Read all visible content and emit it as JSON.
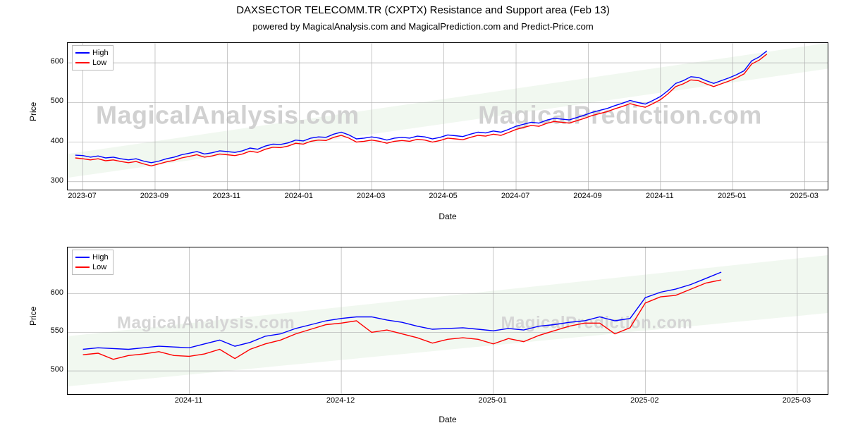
{
  "title": "DAXSECTOR TELECOMM.TR (CXPTX) Resistance and Support area (Feb 13)",
  "subtitle": "powered by MagicalAnalysis.com and MagicalPrediction.com and Predict-Price.com",
  "xlabel": "Date",
  "ylabel": "Price",
  "legend": {
    "high": "High",
    "low": "Low",
    "high_color": "#0000ff",
    "low_color": "#ff0000"
  },
  "watermark": {
    "line1_a": "MagicalAnalysis.com",
    "line1_b": "MagicalPrediction.com",
    "line2_a": "MagicalAnalysis.com",
    "line2_b": "MagicalPrediction.com"
  },
  "chart1": {
    "type": "line",
    "background_color": "#ffffff",
    "grid_color": "#b0b0b0",
    "band_color": "#d8ecd4",
    "xlim": [
      0,
      100
    ],
    "ylim": [
      280,
      650
    ],
    "ytick_step": 100,
    "yticks": [
      300,
      400,
      500,
      600
    ],
    "xtick_positions": [
      2,
      11.5,
      21,
      30.5,
      40,
      49.5,
      59,
      68.5,
      78,
      87.5,
      97
    ],
    "xtick_labels": [
      "2023-07",
      "2023-09",
      "2023-11",
      "2024-01",
      "2024-03",
      "2024-05",
      "2024-07",
      "2024-09",
      "2024-11",
      "2025-01",
      "2025-03"
    ],
    "band_poly": [
      [
        0,
        310
      ],
      [
        100,
        585
      ],
      [
        100,
        650
      ],
      [
        0,
        370
      ]
    ],
    "high_color": "#0000ff",
    "low_color": "#ff0000",
    "line_width": 1.4,
    "high": [
      [
        1,
        367
      ],
      [
        2,
        366
      ],
      [
        3,
        362
      ],
      [
        4,
        365
      ],
      [
        5,
        360
      ],
      [
        6,
        362
      ],
      [
        7,
        358
      ],
      [
        8,
        355
      ],
      [
        9,
        358
      ],
      [
        10,
        352
      ],
      [
        11,
        348
      ],
      [
        12,
        352
      ],
      [
        13,
        358
      ],
      [
        14,
        362
      ],
      [
        15,
        368
      ],
      [
        16,
        372
      ],
      [
        17,
        376
      ],
      [
        18,
        370
      ],
      [
        19,
        373
      ],
      [
        20,
        378
      ],
      [
        21,
        376
      ],
      [
        22,
        374
      ],
      [
        23,
        378
      ],
      [
        24,
        385
      ],
      [
        25,
        382
      ],
      [
        26,
        390
      ],
      [
        27,
        395
      ],
      [
        28,
        394
      ],
      [
        29,
        398
      ],
      [
        30,
        405
      ],
      [
        31,
        403
      ],
      [
        32,
        410
      ],
      [
        33,
        413
      ],
      [
        34,
        412
      ],
      [
        35,
        420
      ],
      [
        36,
        425
      ],
      [
        37,
        418
      ],
      [
        38,
        408
      ],
      [
        39,
        410
      ],
      [
        40,
        413
      ],
      [
        41,
        410
      ],
      [
        42,
        405
      ],
      [
        43,
        410
      ],
      [
        44,
        412
      ],
      [
        45,
        410
      ],
      [
        46,
        415
      ],
      [
        47,
        413
      ],
      [
        48,
        408
      ],
      [
        49,
        412
      ],
      [
        50,
        418
      ],
      [
        51,
        416
      ],
      [
        52,
        414
      ],
      [
        53,
        420
      ],
      [
        54,
        425
      ],
      [
        55,
        423
      ],
      [
        56,
        428
      ],
      [
        57,
        425
      ],
      [
        58,
        432
      ],
      [
        59,
        440
      ],
      [
        60,
        445
      ],
      [
        61,
        450
      ],
      [
        62,
        448
      ],
      [
        63,
        455
      ],
      [
        64,
        460
      ],
      [
        65,
        458
      ],
      [
        66,
        456
      ],
      [
        67,
        462
      ],
      [
        68,
        468
      ],
      [
        69,
        475
      ],
      [
        70,
        480
      ],
      [
        71,
        485
      ],
      [
        72,
        492
      ],
      [
        73,
        498
      ],
      [
        74,
        505
      ],
      [
        75,
        500
      ],
      [
        76,
        496
      ],
      [
        77,
        505
      ],
      [
        78,
        515
      ],
      [
        79,
        530
      ],
      [
        80,
        548
      ],
      [
        81,
        555
      ],
      [
        82,
        565
      ],
      [
        83,
        563
      ],
      [
        84,
        555
      ],
      [
        85,
        548
      ],
      [
        86,
        555
      ],
      [
        87,
        562
      ],
      [
        88,
        570
      ],
      [
        89,
        580
      ],
      [
        90,
        605
      ],
      [
        91,
        615
      ],
      [
        92,
        630
      ]
    ],
    "low": [
      [
        1,
        360
      ],
      [
        2,
        358
      ],
      [
        3,
        355
      ],
      [
        4,
        358
      ],
      [
        5,
        353
      ],
      [
        6,
        355
      ],
      [
        7,
        351
      ],
      [
        8,
        348
      ],
      [
        9,
        351
      ],
      [
        10,
        345
      ],
      [
        11,
        340
      ],
      [
        12,
        345
      ],
      [
        13,
        350
      ],
      [
        14,
        354
      ],
      [
        15,
        360
      ],
      [
        16,
        364
      ],
      [
        17,
        368
      ],
      [
        18,
        362
      ],
      [
        19,
        365
      ],
      [
        20,
        370
      ],
      [
        21,
        368
      ],
      [
        22,
        366
      ],
      [
        23,
        370
      ],
      [
        24,
        377
      ],
      [
        25,
        374
      ],
      [
        26,
        382
      ],
      [
        27,
        387
      ],
      [
        28,
        386
      ],
      [
        29,
        390
      ],
      [
        30,
        397
      ],
      [
        31,
        395
      ],
      [
        32,
        402
      ],
      [
        33,
        405
      ],
      [
        34,
        404
      ],
      [
        35,
        412
      ],
      [
        36,
        417
      ],
      [
        37,
        410
      ],
      [
        38,
        400
      ],
      [
        39,
        402
      ],
      [
        40,
        405
      ],
      [
        41,
        402
      ],
      [
        42,
        397
      ],
      [
        43,
        402
      ],
      [
        44,
        404
      ],
      [
        45,
        402
      ],
      [
        46,
        407
      ],
      [
        47,
        405
      ],
      [
        48,
        400
      ],
      [
        49,
        404
      ],
      [
        50,
        410
      ],
      [
        51,
        408
      ],
      [
        52,
        406
      ],
      [
        53,
        412
      ],
      [
        54,
        417
      ],
      [
        55,
        415
      ],
      [
        56,
        420
      ],
      [
        57,
        417
      ],
      [
        58,
        424
      ],
      [
        59,
        432
      ],
      [
        60,
        437
      ],
      [
        61,
        442
      ],
      [
        62,
        440
      ],
      [
        63,
        447
      ],
      [
        64,
        452
      ],
      [
        65,
        450
      ],
      [
        66,
        448
      ],
      [
        67,
        454
      ],
      [
        68,
        460
      ],
      [
        69,
        467
      ],
      [
        70,
        472
      ],
      [
        71,
        477
      ],
      [
        72,
        484
      ],
      [
        73,
        490
      ],
      [
        74,
        497
      ],
      [
        75,
        492
      ],
      [
        76,
        488
      ],
      [
        77,
        497
      ],
      [
        78,
        507
      ],
      [
        79,
        522
      ],
      [
        80,
        540
      ],
      [
        81,
        547
      ],
      [
        82,
        557
      ],
      [
        83,
        555
      ],
      [
        84,
        547
      ],
      [
        85,
        540
      ],
      [
        86,
        547
      ],
      [
        87,
        554
      ],
      [
        88,
        562
      ],
      [
        89,
        572
      ],
      [
        90,
        597
      ],
      [
        91,
        607
      ],
      [
        92,
        622
      ]
    ]
  },
  "chart2": {
    "type": "line",
    "background_color": "#ffffff",
    "grid_color": "#b0b0b0",
    "band_color": "#d8ecd4",
    "xlim": [
      0,
      100
    ],
    "ylim": [
      470,
      660
    ],
    "ytick_step": 50,
    "yticks": [
      500,
      550,
      600
    ],
    "xtick_positions": [
      16,
      36,
      56,
      76,
      96
    ],
    "xtick_labels": [
      "2024-11",
      "2024-12",
      "2025-01",
      "2025-02",
      "2025-03"
    ],
    "band_poly": [
      [
        0,
        545
      ],
      [
        100,
        650
      ],
      [
        100,
        575
      ],
      [
        0,
        480
      ]
    ],
    "high_color": "#0000ff",
    "low_color": "#ff0000",
    "line_width": 1.8,
    "high": [
      [
        2,
        528
      ],
      [
        4,
        530
      ],
      [
        6,
        529
      ],
      [
        8,
        528
      ],
      [
        10,
        530
      ],
      [
        12,
        532
      ],
      [
        14,
        531
      ],
      [
        16,
        530
      ],
      [
        18,
        535
      ],
      [
        20,
        540
      ],
      [
        22,
        532
      ],
      [
        24,
        537
      ],
      [
        26,
        545
      ],
      [
        28,
        548
      ],
      [
        30,
        555
      ],
      [
        32,
        560
      ],
      [
        34,
        565
      ],
      [
        36,
        568
      ],
      [
        38,
        570
      ],
      [
        40,
        570
      ],
      [
        42,
        566
      ],
      [
        44,
        563
      ],
      [
        46,
        558
      ],
      [
        48,
        554
      ],
      [
        50,
        555
      ],
      [
        52,
        556
      ],
      [
        54,
        554
      ],
      [
        56,
        552
      ],
      [
        58,
        555
      ],
      [
        60,
        553
      ],
      [
        62,
        558
      ],
      [
        64,
        560
      ],
      [
        66,
        563
      ],
      [
        68,
        565
      ],
      [
        70,
        570
      ],
      [
        72,
        565
      ],
      [
        74,
        568
      ],
      [
        76,
        595
      ],
      [
        78,
        602
      ],
      [
        80,
        606
      ],
      [
        82,
        612
      ],
      [
        84,
        620
      ],
      [
        86,
        628
      ]
    ],
    "low": [
      [
        2,
        521
      ],
      [
        4,
        523
      ],
      [
        6,
        515
      ],
      [
        8,
        520
      ],
      [
        10,
        522
      ],
      [
        12,
        525
      ],
      [
        14,
        520
      ],
      [
        16,
        519
      ],
      [
        18,
        522
      ],
      [
        20,
        528
      ],
      [
        22,
        516
      ],
      [
        24,
        528
      ],
      [
        26,
        535
      ],
      [
        28,
        540
      ],
      [
        30,
        548
      ],
      [
        32,
        554
      ],
      [
        34,
        560
      ],
      [
        36,
        562
      ],
      [
        38,
        565
      ],
      [
        40,
        550
      ],
      [
        42,
        553
      ],
      [
        44,
        548
      ],
      [
        46,
        543
      ],
      [
        48,
        536
      ],
      [
        50,
        541
      ],
      [
        52,
        543
      ],
      [
        54,
        541
      ],
      [
        56,
        535
      ],
      [
        58,
        542
      ],
      [
        60,
        538
      ],
      [
        62,
        546
      ],
      [
        64,
        552
      ],
      [
        66,
        558
      ],
      [
        68,
        562
      ],
      [
        70,
        562
      ],
      [
        72,
        548
      ],
      [
        74,
        556
      ],
      [
        76,
        588
      ],
      [
        78,
        596
      ],
      [
        80,
        598
      ],
      [
        82,
        606
      ],
      [
        84,
        614
      ],
      [
        86,
        618
      ]
    ]
  },
  "fonts": {
    "title_size": 15,
    "subtitle_size": 13,
    "axis_label_size": 12,
    "tick_size": 11,
    "legend_size": 11
  }
}
